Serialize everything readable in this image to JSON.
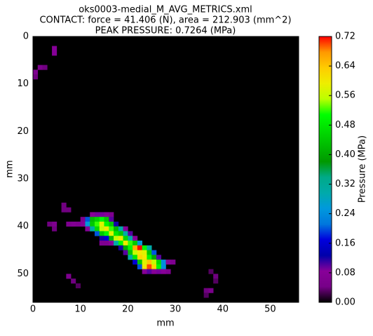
{
  "chart_data": {
    "type": "heatmap",
    "title": [
      "oks0003-medial_M_AVG_METRICS.xml",
      "CONTACT: force = 41.406 (N), area = 212.903 (mm^2)",
      "PEAK PRESSURE: 0.7264 (MPa)"
    ],
    "xlabel": "mm",
    "ylabel": "mm",
    "colorbar_label": "Pressure (MPa)",
    "xlim": [
      0,
      56
    ],
    "ylim": [
      0,
      56
    ],
    "invert_y": true,
    "xticks": [
      0,
      10,
      20,
      30,
      40,
      50
    ],
    "yticks": [
      0,
      10,
      20,
      30,
      40,
      50
    ],
    "clim": [
      0,
      0.72
    ],
    "cticks": [
      {
        "value": 0,
        "label": "0.00"
      },
      0.08,
      0.16,
      0.24,
      0.32,
      {
        "value": 0.4,
        "label": "0.40"
      },
      0.48,
      0.56,
      0.64,
      0.72
    ],
    "background": "#000000",
    "x": [
      4,
      4,
      1,
      2,
      0,
      0,
      6,
      6,
      7,
      3,
      4,
      4,
      12,
      13,
      14,
      15,
      16,
      10,
      11,
      12,
      13,
      14,
      15,
      16,
      7,
      8,
      9,
      10,
      11,
      12,
      13,
      14,
      15,
      16,
      17,
      11,
      12,
      13,
      14,
      15,
      16,
      17,
      18,
      19,
      13,
      14,
      15,
      16,
      17,
      18,
      19,
      20,
      14,
      15,
      16,
      17,
      18,
      19,
      20,
      21,
      14,
      15,
      16,
      17,
      18,
      19,
      20,
      21,
      22,
      18,
      19,
      20,
      21,
      22,
      23,
      24,
      19,
      20,
      21,
      22,
      23,
      24,
      25,
      20,
      21,
      22,
      23,
      24,
      25,
      26,
      21,
      22,
      23,
      24,
      25,
      26,
      27,
      28,
      29,
      22,
      23,
      24,
      25,
      26,
      27,
      23,
      24,
      25,
      26,
      27,
      28,
      7,
      8,
      9,
      37,
      38,
      38,
      36,
      37,
      36
    ],
    "y": [
      2,
      3,
      6,
      6,
      7,
      8,
      35,
      36,
      36,
      39,
      39,
      40,
      37,
      37,
      37,
      37,
      37,
      38,
      38,
      38,
      38,
      38,
      38,
      38,
      39,
      39,
      39,
      39,
      39,
      39,
      39,
      39,
      39,
      39,
      39,
      40,
      40,
      40,
      40,
      40,
      40,
      40,
      40,
      40,
      41,
      41,
      41,
      41,
      41,
      41,
      41,
      41,
      42,
      42,
      42,
      42,
      42,
      42,
      42,
      42,
      43,
      43,
      43,
      43,
      43,
      43,
      43,
      43,
      43,
      44,
      44,
      44,
      44,
      44,
      44,
      44,
      45,
      45,
      45,
      45,
      45,
      45,
      45,
      46,
      46,
      46,
      46,
      46,
      46,
      46,
      47,
      47,
      47,
      47,
      47,
      47,
      47,
      47,
      47,
      48,
      48,
      48,
      48,
      48,
      48,
      49,
      49,
      49,
      49,
      49,
      49,
      50,
      51,
      52,
      49,
      50,
      51,
      53,
      53,
      54
    ],
    "values": [
      0.08,
      0.08,
      0.06,
      0.04,
      0.06,
      0.04,
      0.04,
      0.04,
      0.04,
      0.04,
      0.06,
      0.04,
      0.08,
      0.09,
      0.09,
      0.08,
      0.06,
      0.06,
      0.2,
      0.42,
      0.45,
      0.5,
      0.44,
      0.1,
      0.06,
      0.07,
      0.06,
      0.08,
      0.26,
      0.44,
      0.52,
      0.58,
      0.5,
      0.44,
      0.12,
      0.08,
      0.3,
      0.46,
      0.56,
      0.6,
      0.52,
      0.42,
      0.3,
      0.08,
      0.2,
      0.44,
      0.5,
      0.58,
      0.48,
      0.44,
      0.3,
      0.1,
      0.12,
      0.16,
      0.42,
      0.56,
      0.6,
      0.46,
      0.3,
      0.08,
      0.06,
      0.06,
      0.08,
      0.3,
      0.5,
      0.6,
      0.52,
      0.44,
      0.26,
      0.12,
      0.4,
      0.5,
      0.66,
      0.72,
      0.5,
      0.3,
      0.1,
      0.44,
      0.56,
      0.6,
      0.58,
      0.44,
      0.2,
      0.3,
      0.48,
      0.62,
      0.6,
      0.5,
      0.4,
      0.1,
      0.16,
      0.44,
      0.58,
      0.64,
      0.56,
      0.46,
      0.24,
      0.08,
      0.06,
      0.2,
      0.6,
      0.7,
      0.62,
      0.5,
      0.24,
      0.08,
      0.1,
      0.08,
      0.09,
      0.08,
      0.06,
      0.06,
      0.04,
      0.03,
      0.03,
      0.04,
      0.03,
      0.04,
      0.05,
      0.03
    ]
  }
}
